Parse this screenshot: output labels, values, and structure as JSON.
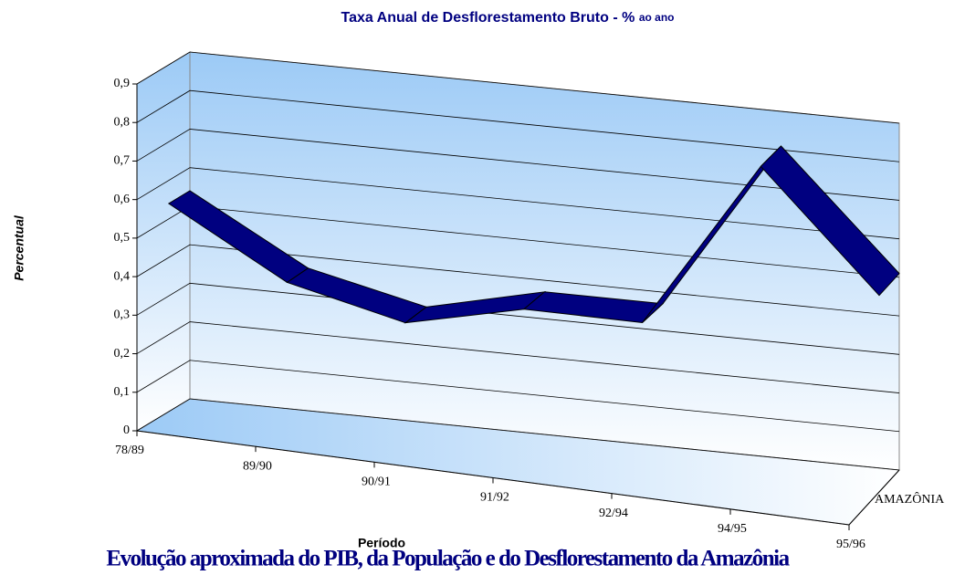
{
  "chart_data": {
    "type": "line3d",
    "title": "Taxa Anual de Desflorestamento Bruto - %",
    "title_suffix": "ao ano",
    "y_label": "Percentual",
    "x_label": "Período",
    "caption": "Evolução aproximada do PIB, da População e do Desflorestamento da Amazônia",
    "categories": [
      "78/89",
      "89/90",
      "90/91",
      "91/92",
      "92/94",
      "94/95",
      "95/96"
    ],
    "series": [
      {
        "name": "AMAZÔNIA",
        "color": "#000080",
        "values": [
          0.54,
          0.37,
          0.3,
          0.37,
          0.37,
          0.81,
          0.51
        ]
      }
    ],
    "ylim": [
      0,
      0.9
    ],
    "yticks": [
      0,
      {
        "value": 0.1,
        "label": "0,1"
      },
      {
        "value": 0.2,
        "label": "0,2"
      },
      {
        "value": 0.3,
        "label": "0,3"
      },
      {
        "value": 0.4,
        "label": "0,4"
      },
      {
        "value": 0.5,
        "label": "0,5"
      },
      {
        "value": 0.6,
        "label": "0,6"
      },
      {
        "value": 0.7,
        "label": "0,7"
      },
      {
        "value": 0.8,
        "label": "0,8"
      },
      {
        "value": 0.9,
        "label": "0,9"
      }
    ],
    "grid": true
  }
}
